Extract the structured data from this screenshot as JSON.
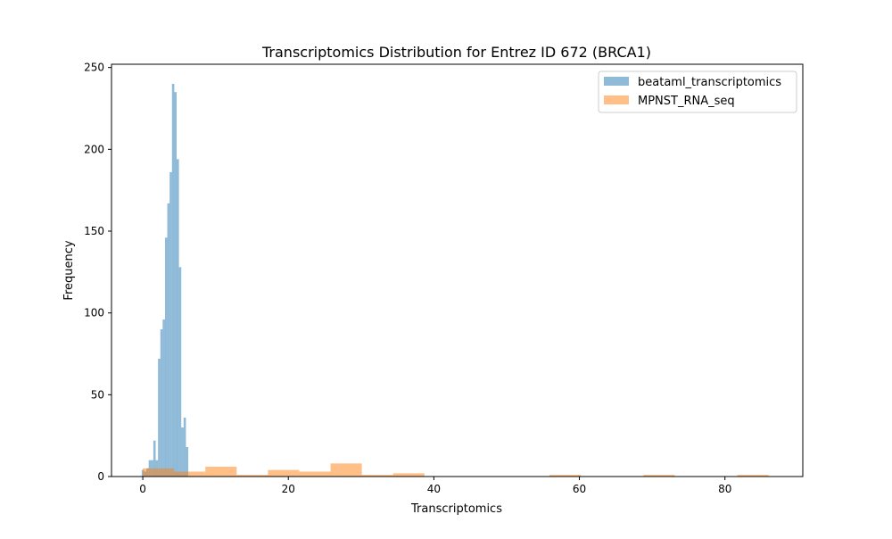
{
  "chart_data": {
    "type": "histogram",
    "title": "Transcriptomics Distribution for Entrez ID 672 (BRCA1)",
    "xlabel": "Transcriptomics",
    "ylabel": "Frequency",
    "xlim": [
      -4.3,
      90.7
    ],
    "ylim": [
      0,
      252
    ],
    "xticks": [
      0,
      20,
      40,
      60,
      80
    ],
    "yticks": [
      0,
      50,
      100,
      150,
      200,
      250
    ],
    "grid": false,
    "legend_position": "top-right",
    "series": [
      {
        "name": "beataml_transcriptomics",
        "color": "#1f77b4",
        "opacity": 0.5,
        "bins": [
          {
            "x0": -0.15,
            "x1": 0.17,
            "count": 4
          },
          {
            "x0": 0.17,
            "x1": 0.49,
            "count": 3
          },
          {
            "x0": 0.49,
            "x1": 0.81,
            "count": 5
          },
          {
            "x0": 0.81,
            "x1": 1.13,
            "count": 10
          },
          {
            "x0": 1.13,
            "x1": 1.45,
            "count": 10
          },
          {
            "x0": 1.45,
            "x1": 1.77,
            "count": 22
          },
          {
            "x0": 1.77,
            "x1": 2.09,
            "count": 10
          },
          {
            "x0": 2.09,
            "x1": 2.41,
            "count": 72
          },
          {
            "x0": 2.41,
            "x1": 2.73,
            "count": 90
          },
          {
            "x0": 2.73,
            "x1": 3.05,
            "count": 96
          },
          {
            "x0": 3.05,
            "x1": 3.37,
            "count": 146
          },
          {
            "x0": 3.37,
            "x1": 3.69,
            "count": 167
          },
          {
            "x0": 3.69,
            "x1": 4.01,
            "count": 186
          },
          {
            "x0": 4.01,
            "x1": 4.33,
            "count": 240
          },
          {
            "x0": 4.33,
            "x1": 4.65,
            "count": 235
          },
          {
            "x0": 4.65,
            "x1": 4.97,
            "count": 194
          },
          {
            "x0": 4.97,
            "x1": 5.29,
            "count": 128
          },
          {
            "x0": 5.29,
            "x1": 5.61,
            "count": 30
          },
          {
            "x0": 5.61,
            "x1": 5.93,
            "count": 36
          },
          {
            "x0": 5.93,
            "x1": 6.25,
            "count": 18
          }
        ]
      },
      {
        "name": "MPNST_RNA_seq",
        "color": "#ff7f0e",
        "opacity": 0.5,
        "bins": [
          {
            "x0": 0.0,
            "x1": 4.3,
            "count": 5
          },
          {
            "x0": 4.3,
            "x1": 8.6,
            "count": 3
          },
          {
            "x0": 8.6,
            "x1": 12.9,
            "count": 6
          },
          {
            "x0": 12.9,
            "x1": 17.2,
            "count": 1
          },
          {
            "x0": 17.2,
            "x1": 21.5,
            "count": 4
          },
          {
            "x0": 21.5,
            "x1": 25.8,
            "count": 3
          },
          {
            "x0": 25.8,
            "x1": 30.1,
            "count": 8
          },
          {
            "x0": 30.1,
            "x1": 34.4,
            "count": 1
          },
          {
            "x0": 34.4,
            "x1": 38.7,
            "count": 2
          },
          {
            "x0": 38.7,
            "x1": 43.0,
            "count": 0
          },
          {
            "x0": 43.0,
            "x1": 47.3,
            "count": 0
          },
          {
            "x0": 47.3,
            "x1": 51.6,
            "count": 0
          },
          {
            "x0": 51.6,
            "x1": 55.9,
            "count": 0
          },
          {
            "x0": 55.9,
            "x1": 60.2,
            "count": 1
          },
          {
            "x0": 60.2,
            "x1": 64.5,
            "count": 0
          },
          {
            "x0": 64.5,
            "x1": 68.8,
            "count": 0
          },
          {
            "x0": 68.8,
            "x1": 73.1,
            "count": 1
          },
          {
            "x0": 73.1,
            "x1": 77.4,
            "count": 0
          },
          {
            "x0": 77.4,
            "x1": 81.7,
            "count": 0
          },
          {
            "x0": 81.7,
            "x1": 86.0,
            "count": 1
          }
        ]
      }
    ]
  }
}
